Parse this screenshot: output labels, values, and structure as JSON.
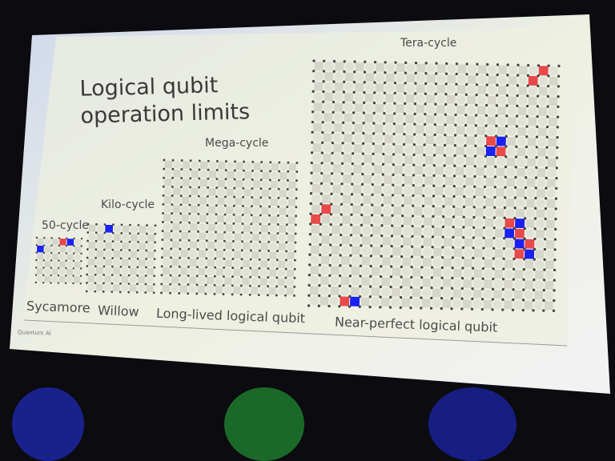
{
  "slide": {
    "title_line1": "Logical qubit",
    "title_line2": "operation limits",
    "brand": "Quantum AI"
  },
  "colors": {
    "red": "#e84a4a",
    "blue": "#1a22f0",
    "grid_square": "#cfcfc6",
    "dot": "#444444",
    "slide_bg": "#eef0e2"
  },
  "stages": [
    {
      "cycle_label": "50-cycle",
      "chip_label": "Sycamore",
      "size": 6,
      "cells": [
        {
          "r": 0,
          "c": 3,
          "color": "red"
        },
        {
          "r": 0,
          "c": 4,
          "color": "blue"
        },
        {
          "r": 1,
          "c": 0,
          "color": "blue"
        }
      ]
    },
    {
      "cycle_label": "Kilo-cycle",
      "chip_label": "Willow",
      "size": 8,
      "cells": [
        {
          "r": 0,
          "c": 2,
          "color": "blue"
        }
      ]
    },
    {
      "cycle_label": "Mega-cycle",
      "chip_label": "Long-lived logical qubit",
      "size": 15,
      "cells": []
    },
    {
      "cycle_label": "Tera-cycle",
      "chip_label": "Near-perfect logical qubit",
      "size": 24,
      "cells": [
        {
          "r": 0,
          "c": 22,
          "color": "red"
        },
        {
          "r": 1,
          "c": 21,
          "color": "red"
        },
        {
          "r": 7,
          "c": 17,
          "color": "red"
        },
        {
          "r": 7,
          "c": 18,
          "color": "blue"
        },
        {
          "r": 8,
          "c": 17,
          "color": "blue"
        },
        {
          "r": 8,
          "c": 18,
          "color": "red"
        },
        {
          "r": 14,
          "c": 1,
          "color": "red"
        },
        {
          "r": 15,
          "c": 0,
          "color": "red"
        },
        {
          "r": 15,
          "c": 19,
          "color": "red"
        },
        {
          "r": 15,
          "c": 20,
          "color": "blue"
        },
        {
          "r": 16,
          "c": 19,
          "color": "blue"
        },
        {
          "r": 16,
          "c": 20,
          "color": "red"
        },
        {
          "r": 17,
          "c": 20,
          "color": "blue"
        },
        {
          "r": 17,
          "c": 21,
          "color": "red"
        },
        {
          "r": 18,
          "c": 20,
          "color": "red"
        },
        {
          "r": 18,
          "c": 21,
          "color": "blue"
        },
        {
          "r": 23,
          "c": 3,
          "color": "red"
        },
        {
          "r": 23,
          "c": 4,
          "color": "blue"
        }
      ]
    }
  ]
}
